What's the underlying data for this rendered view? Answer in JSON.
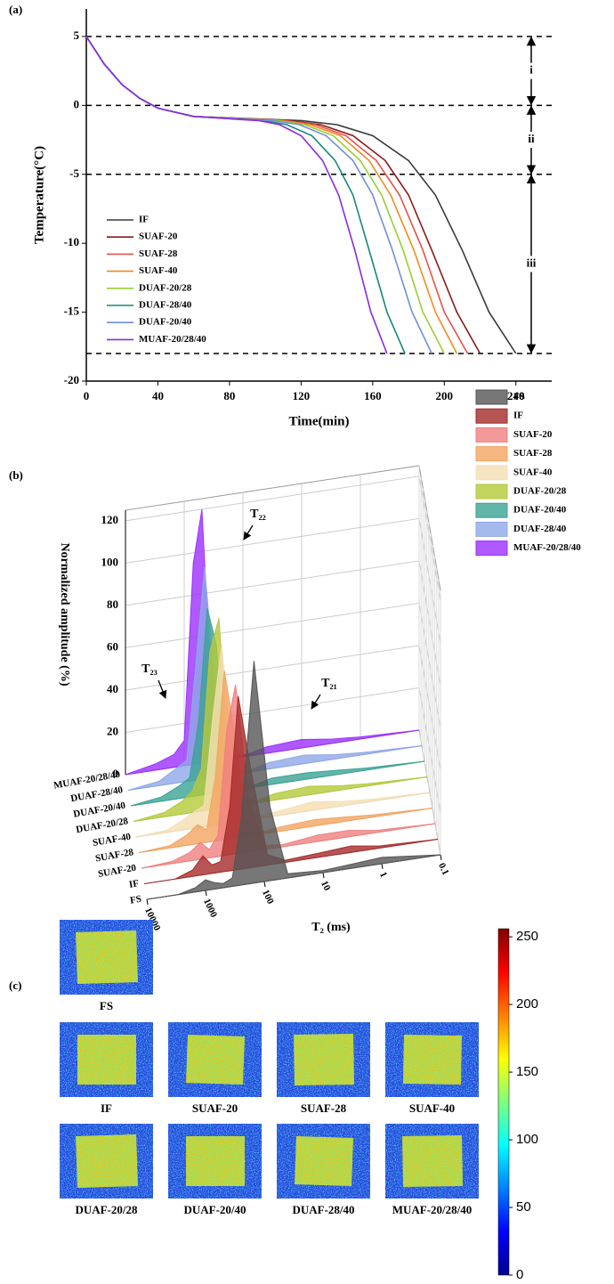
{
  "chart_data": [
    {
      "type": "line",
      "panel_label": "(a)",
      "xlabel": "Time(min)",
      "ylabel": "Temperature(°C)",
      "xlim": [
        0,
        260
      ],
      "ylim": [
        -20,
        7
      ],
      "xticks": [
        0,
        40,
        80,
        120,
        160,
        200,
        240
      ],
      "yticks": [
        -20,
        -15,
        -10,
        -5,
        0,
        5
      ],
      "reference_lines": [
        5,
        0,
        -5,
        -18
      ],
      "stage_labels": [
        "i",
        "ii",
        "iii"
      ],
      "series": [
        {
          "name": "IF",
          "color": "#3a3a3a",
          "x": [
            0,
            10,
            20,
            30,
            40,
            60,
            80,
            100,
            120,
            140,
            160,
            180,
            195,
            210,
            225,
            240
          ],
          "values": [
            5,
            3,
            1.5,
            0.5,
            -0.2,
            -0.8,
            -0.9,
            -1,
            -1.1,
            -1.4,
            -2.2,
            -4,
            -6.5,
            -10.5,
            -15,
            -18
          ]
        },
        {
          "name": "SUAF-20",
          "color": "#8b1a1a",
          "x": [
            0,
            10,
            20,
            30,
            40,
            60,
            78,
            96,
            113,
            131,
            149,
            167,
            180,
            193,
            207,
            220
          ],
          "values": [
            5,
            3,
            1.5,
            0.5,
            -0.2,
            -0.8,
            -0.9,
            -1,
            -1.1,
            -1.4,
            -2.2,
            -4,
            -6.5,
            -10.5,
            -15,
            -18
          ]
        },
        {
          "name": "SUAF-28",
          "color": "#e8504a",
          "x": [
            0,
            10,
            20,
            30,
            40,
            60,
            77,
            94,
            111,
            128,
            145,
            162,
            175,
            188,
            200,
            213
          ],
          "values": [
            5,
            3,
            1.5,
            0.5,
            -0.2,
            -0.8,
            -0.9,
            -1,
            -1.1,
            -1.4,
            -2.2,
            -4,
            -6.5,
            -10.5,
            -15,
            -18
          ]
        },
        {
          "name": "SUAF-40",
          "color": "#f08a1e",
          "x": [
            0,
            10,
            20,
            30,
            40,
            60,
            76,
            93,
            109,
            125,
            142,
            158,
            170,
            183,
            195,
            207
          ],
          "values": [
            5,
            3,
            1.5,
            0.5,
            -0.2,
            -0.8,
            -0.9,
            -1,
            -1.1,
            -1.4,
            -2.2,
            -4,
            -6.5,
            -10.5,
            -15,
            -18
          ]
        },
        {
          "name": "DUAF-20/28",
          "color": "#9acd32",
          "x": [
            0,
            10,
            20,
            30,
            40,
            60,
            76,
            91,
            107,
            122,
            138,
            153,
            165,
            177,
            188,
            200
          ],
          "values": [
            5,
            3,
            1.5,
            0.5,
            -0.2,
            -0.8,
            -0.9,
            -1,
            -1.1,
            -1.4,
            -2.2,
            -4,
            -6.5,
            -10.5,
            -15,
            -18
          ]
        },
        {
          "name": "DUAF-28/40",
          "color": "#138a7a",
          "x": [
            0,
            10,
            20,
            30,
            40,
            60,
            73,
            86,
            99,
            112,
            126,
            139,
            149,
            158,
            168,
            178
          ],
          "values": [
            5,
            3,
            1.5,
            0.5,
            -0.2,
            -0.8,
            -0.9,
            -1,
            -1.1,
            -1.4,
            -2.2,
            -4,
            -6.5,
            -10.5,
            -15,
            -18
          ]
        },
        {
          "name": "DUAF-20/40",
          "color": "#6f8fd8",
          "x": [
            0,
            10,
            20,
            30,
            40,
            60,
            75,
            90,
            104,
            119,
            134,
            149,
            160,
            171,
            182,
            193
          ],
          "values": [
            5,
            3,
            1.5,
            0.5,
            -0.2,
            -0.8,
            -0.9,
            -1,
            -1.1,
            -1.4,
            -2.2,
            -4,
            -6.5,
            -10.5,
            -15,
            -18
          ]
        },
        {
          "name": "MUAF-20/28/40",
          "color": "#8a2be2",
          "x": [
            0,
            10,
            20,
            30,
            40,
            60,
            72,
            84,
            96,
            108,
            120,
            132,
            141,
            150,
            159,
            168
          ],
          "values": [
            5,
            3,
            1.5,
            0.5,
            -0.2,
            -0.8,
            -0.9,
            -1,
            -1.1,
            -1.4,
            -2.2,
            -4,
            -6.5,
            -10.5,
            -15,
            -18
          ]
        }
      ]
    },
    {
      "type": "waterfall",
      "panel_label": "(b)",
      "xlabel": "T₂ (ms)",
      "ylabel": "Normalized amplitude (%)",
      "xscale": "log",
      "xlim": [
        10000,
        0.1
      ],
      "xticks": [
        10000,
        1000,
        100,
        10,
        1,
        0.1
      ],
      "ylim": [
        0,
        125
      ],
      "yticks": [
        0,
        20,
        40,
        60,
        80,
        100,
        120
      ],
      "annotations": [
        "T₂₂",
        "T₂₁",
        "T₂₃"
      ],
      "x": [
        10000,
        3000,
        1500,
        1000,
        700,
        500,
        350,
        250,
        150,
        80,
        40,
        10,
        3,
        1,
        0.1
      ],
      "series": [
        {
          "name": "FS",
          "color": "#555555",
          "values": [
            0,
            0,
            2,
            5,
            3,
            2,
            4,
            30,
            105,
            35,
            2,
            1,
            2,
            3,
            0
          ]
        },
        {
          "name": "IF",
          "color": "#a52a2a",
          "values": [
            0,
            0,
            3,
            9,
            4,
            5,
            30,
            82,
            45,
            5,
            1,
            2,
            3,
            1,
            0
          ]
        },
        {
          "name": "SUAF-20",
          "color": "#f08080",
          "values": [
            0,
            1,
            4,
            8,
            4,
            10,
            60,
            80,
            25,
            2,
            1,
            3,
            3,
            1,
            0
          ]
        },
        {
          "name": "SUAF-28",
          "color": "#f4a460",
          "values": [
            0,
            1,
            5,
            9,
            6,
            30,
            80,
            55,
            8,
            1,
            2,
            3,
            2,
            1,
            0
          ]
        },
        {
          "name": "SUAF-40",
          "color": "#f5deb3",
          "values": [
            0,
            1,
            5,
            8,
            10,
            50,
            85,
            40,
            5,
            1,
            2,
            4,
            2,
            1,
            0
          ]
        },
        {
          "name": "DUAF-20/28",
          "color": "#b5c93a",
          "values": [
            0,
            2,
            6,
            10,
            20,
            75,
            90,
            25,
            3,
            1,
            3,
            4,
            2,
            1,
            0
          ]
        },
        {
          "name": "DUAF-20/40",
          "color": "#3aa394",
          "values": [
            0,
            2,
            6,
            9,
            35,
            88,
            70,
            15,
            2,
            1,
            3,
            3,
            2,
            1,
            0
          ]
        },
        {
          "name": "DUAF-28/40",
          "color": "#8fa8e8",
          "values": [
            0,
            2,
            7,
            10,
            55,
            100,
            50,
            8,
            1,
            1,
            3,
            4,
            2,
            1,
            0
          ]
        },
        {
          "name": "MUAF-20/28/40",
          "color": "#9b30ff",
          "values": [
            0,
            3,
            6,
            12,
            95,
            120,
            35,
            5,
            1,
            1,
            3,
            4,
            2,
            1,
            0
          ]
        }
      ]
    },
    {
      "type": "image-grid",
      "panel_label": "(c)",
      "images": [
        "FS",
        "IF",
        "SUAF-20",
        "SUAF-28",
        "SUAF-40",
        "DUAF-20/28",
        "DUAF-20/40",
        "DUAF-28/40",
        "MUAF-20/28/40"
      ],
      "colorbar": {
        "lim": [
          0,
          256
        ],
        "ticks": [
          0,
          50,
          100,
          150,
          200,
          250
        ]
      }
    }
  ]
}
